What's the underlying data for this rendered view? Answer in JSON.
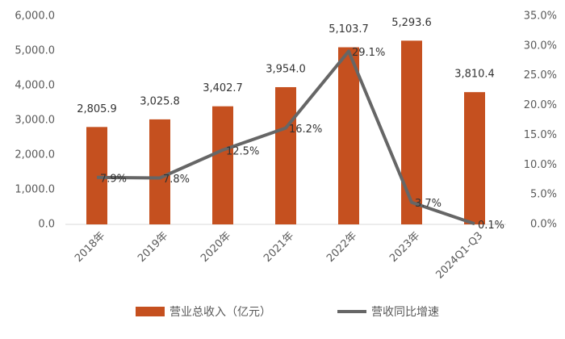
{
  "chart_data": {
    "type": "bar",
    "categories": [
      "2018年",
      "2019年",
      "2020年",
      "2021年",
      "2022年",
      "2023年",
      "2024Q1-Q3"
    ],
    "series": [
      {
        "name": "营业总收入（亿元）",
        "type": "bar",
        "color": "#c5501f",
        "values": [
          2805.9,
          3025.8,
          3402.7,
          3954.0,
          5103.7,
          5293.6,
          3810.4
        ],
        "value_labels": [
          "2,805.9",
          "3,025.8",
          "3,402.7",
          "3,954.0",
          "5,103.7",
          "5,293.6",
          "3,810.4"
        ]
      },
      {
        "name": "营收同比增速",
        "type": "line",
        "axis": "y2",
        "color": "#666666",
        "values": [
          7.9,
          7.8,
          12.5,
          16.2,
          29.1,
          3.7,
          0.1
        ],
        "value_labels": [
          "7.9%",
          "7.8%",
          "12.5%",
          "16.2%",
          "29.1%",
          "3.7%",
          "0.1%"
        ]
      }
    ],
    "ylim": [
      0,
      6000
    ],
    "yticks": [
      {
        "value": 0,
        "label": "0.0"
      },
      {
        "value": 1000,
        "label": "1,000.0"
      },
      {
        "value": 2000,
        "label": "2,000.0"
      },
      {
        "value": 3000,
        "label": "3,000.0"
      },
      {
        "value": 4000,
        "label": "4,000.0"
      },
      {
        "value": 5000,
        "label": "5,000.0"
      },
      {
        "value": 6000,
        "label": "6,000.0"
      }
    ],
    "y2lim": [
      0,
      35
    ],
    "y2ticks": [
      {
        "value": 0,
        "label": "0.0%"
      },
      {
        "value": 5,
        "label": "5.0%"
      },
      {
        "value": 10,
        "label": "10.0%"
      },
      {
        "value": 15,
        "label": "15.0%"
      },
      {
        "value": 20,
        "label": "20.0%"
      },
      {
        "value": 25,
        "label": "25.0%"
      },
      {
        "value": 30,
        "label": "30.0%"
      },
      {
        "value": 35,
        "label": "35.0%"
      }
    ],
    "grid": false,
    "legend": "bottom"
  }
}
